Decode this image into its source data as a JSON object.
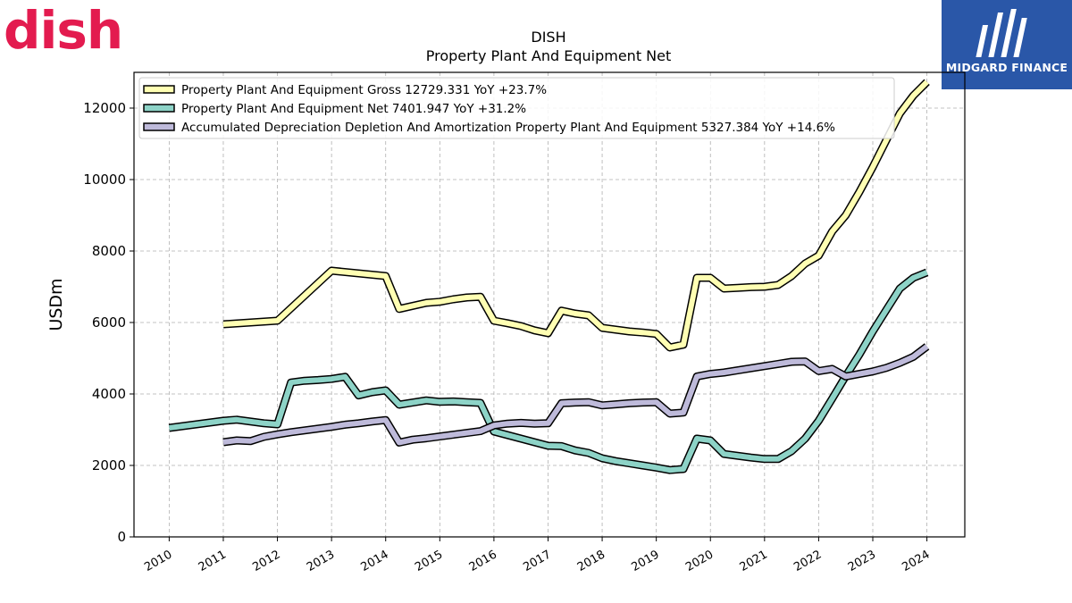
{
  "brand": {
    "logo_text": "dish",
    "badge_text": "MIDGARD FINANCE",
    "accent_color": "#e31b4f",
    "badge_color": "#2a57a8"
  },
  "chart_data": {
    "type": "line",
    "title": "DISH",
    "subtitle": "Property Plant And Equipment Net",
    "xlabel": "",
    "ylabel": "USDm",
    "xlim": [
      2009.35,
      2024.7
    ],
    "ylim": [
      0,
      13000
    ],
    "grid": true,
    "legend_placement": "top-left",
    "yticks": [
      0,
      2000,
      4000,
      6000,
      8000,
      10000,
      12000
    ],
    "xticks": [
      "2010",
      "2011",
      "2012",
      "2013",
      "2014",
      "2015",
      "2016",
      "2017",
      "2018",
      "2019",
      "2020",
      "2021",
      "2022",
      "2023",
      "2024"
    ],
    "series": [
      {
        "name": "Property Plant And Equipment Gross",
        "legend_label": "Property Plant And Equipment Gross  12729.331 YoY +23.7%",
        "color": "#ffffb3",
        "x": [
          2011.0,
          2012.0,
          2013.0,
          2014.0,
          2014.25,
          2014.75,
          2015.0,
          2015.25,
          2015.5,
          2015.75,
          2016.0,
          2016.25,
          2016.5,
          2016.75,
          2017.0,
          2017.25,
          2017.5,
          2017.75,
          2018.0,
          2018.25,
          2018.5,
          2018.75,
          2019.0,
          2019.25,
          2019.5,
          2019.75,
          2020.0,
          2020.25,
          2020.5,
          2020.75,
          2021.0,
          2021.25,
          2021.5,
          2021.75,
          2022.0,
          2022.25,
          2022.5,
          2022.75,
          2023.0,
          2023.25,
          2023.5,
          2023.75,
          2024.0
        ],
        "values": [
          5950,
          6050,
          7450,
          7300,
          6380,
          6550,
          6580,
          6650,
          6700,
          6720,
          6050,
          5980,
          5900,
          5780,
          5700,
          6330,
          6250,
          6200,
          5850,
          5800,
          5750,
          5720,
          5680,
          5300,
          5380,
          7250,
          7250,
          6950,
          6970,
          6990,
          7000,
          7050,
          7300,
          7650,
          7870,
          8550,
          9000,
          9650,
          10350,
          11100,
          11850,
          12350,
          12729.331
        ]
      },
      {
        "name": "Property Plant And Equipment Net",
        "legend_label": "Property Plant And Equipment Net  7401.947 YoY +31.2%",
        "color": "#8dd3c7",
        "x": [
          2010.0,
          2010.5,
          2011.0,
          2011.25,
          2011.5,
          2011.75,
          2012.0,
          2012.25,
          2012.5,
          2012.75,
          2013.0,
          2013.25,
          2013.5,
          2013.75,
          2014.0,
          2014.25,
          2014.5,
          2014.75,
          2015.0,
          2015.25,
          2015.5,
          2015.75,
          2016.0,
          2016.25,
          2016.5,
          2016.75,
          2017.0,
          2017.25,
          2017.5,
          2017.75,
          2018.0,
          2018.25,
          2018.5,
          2018.75,
          2019.0,
          2019.25,
          2019.5,
          2019.75,
          2020.0,
          2020.25,
          2020.5,
          2020.75,
          2021.0,
          2021.25,
          2021.5,
          2021.75,
          2022.0,
          2022.25,
          2022.5,
          2022.75,
          2023.0,
          2023.25,
          2023.5,
          2023.75,
          2024.0
        ],
        "values": [
          3050,
          3150,
          3250,
          3280,
          3230,
          3180,
          3150,
          4320,
          4370,
          4390,
          4420,
          4480,
          3960,
          4050,
          4100,
          3700,
          3760,
          3820,
          3780,
          3790,
          3770,
          3750,
          2950,
          2850,
          2750,
          2650,
          2550,
          2540,
          2420,
          2350,
          2200,
          2120,
          2060,
          2000,
          1940,
          1870,
          1900,
          2750,
          2700,
          2320,
          2270,
          2220,
          2180,
          2180,
          2400,
          2750,
          3250,
          3870,
          4500,
          5100,
          5750,
          6350,
          6950,
          7250,
          7401.947
        ]
      },
      {
        "name": "Accumulated Depreciation Depletion And Amortization Property Plant And Equipment",
        "legend_label": "Accumulated Depreciation Depletion And Amortization Property Plant And Equipment  5327.384 YoY +14.6%",
        "color": "#bebada",
        "x": [
          2011.0,
          2011.25,
          2011.5,
          2011.75,
          2012.0,
          2012.25,
          2012.5,
          2012.75,
          2013.0,
          2013.25,
          2013.5,
          2013.75,
          2014.0,
          2014.25,
          2014.5,
          2014.75,
          2015.0,
          2015.25,
          2015.5,
          2015.75,
          2016.0,
          2016.25,
          2016.5,
          2016.75,
          2017.0,
          2017.25,
          2017.5,
          2017.75,
          2018.0,
          2018.25,
          2018.5,
          2018.75,
          2019.0,
          2019.25,
          2019.5,
          2019.75,
          2020.0,
          2020.25,
          2020.5,
          2020.75,
          2021.0,
          2021.25,
          2021.5,
          2021.75,
          2022.0,
          2022.25,
          2022.5,
          2022.75,
          2023.0,
          2023.25,
          2023.5,
          2023.75,
          2024.0
        ],
        "values": [
          2650,
          2700,
          2680,
          2800,
          2870,
          2930,
          2980,
          3030,
          3080,
          3140,
          3180,
          3230,
          3270,
          2640,
          2720,
          2760,
          2810,
          2860,
          2910,
          2960,
          3120,
          3170,
          3190,
          3170,
          3180,
          3740,
          3760,
          3770,
          3680,
          3710,
          3740,
          3760,
          3770,
          3450,
          3480,
          4490,
          4560,
          4600,
          4660,
          4720,
          4780,
          4840,
          4900,
          4910,
          4640,
          4700,
          4490,
          4560,
          4630,
          4730,
          4870,
          5040,
          5327.384
        ]
      }
    ]
  }
}
